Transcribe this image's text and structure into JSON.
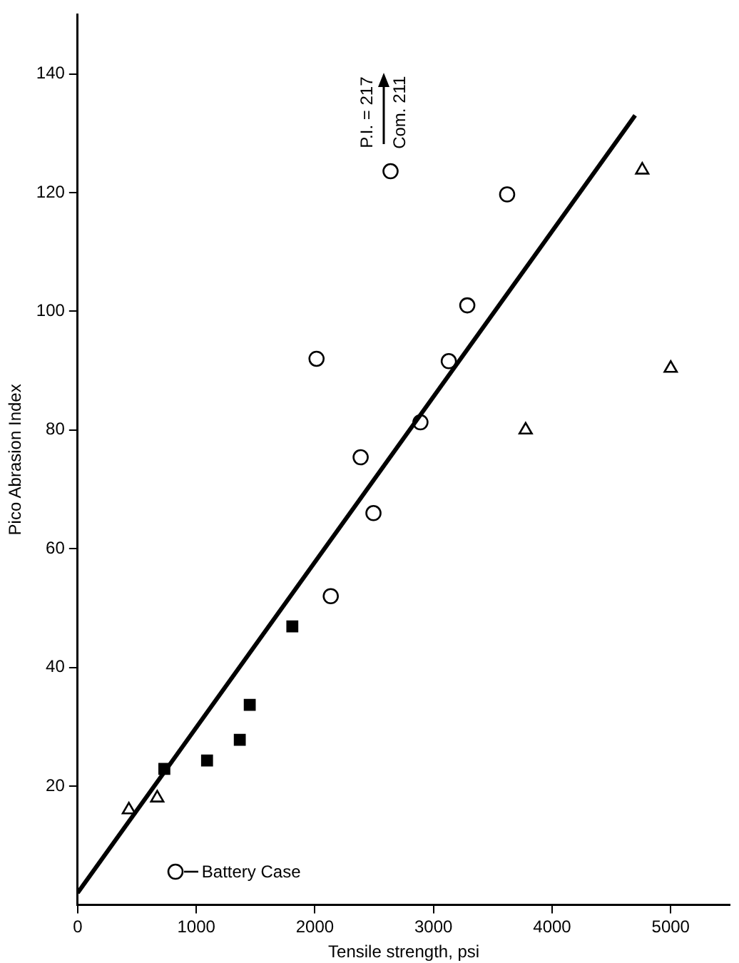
{
  "chart_data": {
    "type": "scatter",
    "xlabel": "Tensile strength, psi",
    "ylabel": "Pico Abrasion Index",
    "xlim": [
      0,
      5500
    ],
    "xticks": [
      0,
      1000,
      2000,
      3000,
      4000,
      5000
    ],
    "ylim": [
      0,
      150
    ],
    "yticks": [
      20,
      40,
      60,
      80,
      100,
      120,
      140
    ],
    "grid": false,
    "legend": "bottom left",
    "series": [
      {
        "name": "Battery Case",
        "color": "#000000",
        "marker": "circle",
        "x": [
          2134,
          2638,
          3621,
          3285,
          2014,
          3129,
          2890,
          2386,
          2494
        ],
        "values": [
          52,
          123.6,
          119.7,
          101,
          92,
          91.6,
          81.3,
          75.4,
          66
        ]
      },
      {
        "color": "#000000",
        "marker": "triangle",
        "x": [
          432,
          671,
          4760,
          5000,
          3777
        ],
        "values": [
          16,
          18,
          123.8,
          90.4,
          80
        ]
      },
      {
        "color": "#000000",
        "marker": "square",
        "x": [
          731,
          1091,
          1367,
          1451,
          1810
        ],
        "values": [
          22.9,
          24.3,
          27.8,
          33.7,
          46.9
        ]
      },
      {
        "type": "line",
        "color": "#000000",
        "marker": "none",
        "line_style": "solid",
        "x": [
          0,
          4700
        ],
        "values": [
          2,
          133
        ]
      }
    ],
    "annotations": [
      "P.I. = 217",
      "Com. 211"
    ]
  }
}
